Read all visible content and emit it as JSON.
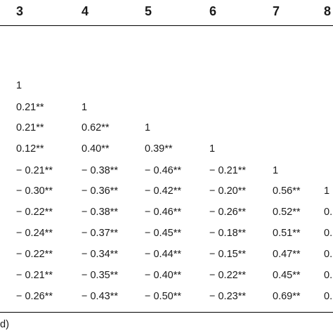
{
  "header": {
    "columns": [
      "3",
      "4",
      "5",
      "6",
      "7",
      "8"
    ]
  },
  "rows": [
    [
      "1",
      "",
      "",
      "",
      "",
      ""
    ],
    [
      "0.21**",
      "1",
      "",
      "",
      "",
      ""
    ],
    [
      "0.21**",
      "0.62**",
      "1",
      "",
      "",
      ""
    ],
    [
      "0.12**",
      "0.40**",
      "0.39**",
      "1",
      "",
      ""
    ],
    [
      "− 0.21**",
      "− 0.38**",
      "− 0.46**",
      "− 0.21**",
      "1",
      ""
    ],
    [
      "− 0.30**",
      "− 0.36**",
      "− 0.42**",
      "− 0.20**",
      "0.56**",
      "1"
    ],
    [
      "− 0.22**",
      "− 0.38**",
      "− 0.46**",
      "− 0.26**",
      "0.52**",
      "0."
    ],
    [
      "− 0.24**",
      "− 0.37**",
      "− 0.45**",
      "− 0.18**",
      "0.51**",
      "0."
    ],
    [
      "− 0.22**",
      "− 0.34**",
      "− 0.44**",
      "− 0.15**",
      "0.47**",
      "0."
    ],
    [
      "− 0.21**",
      "− 0.35**",
      "− 0.40**",
      "− 0.22**",
      "0.45**",
      "0."
    ],
    [
      "− 0.26**",
      "− 0.43**",
      "− 0.50**",
      "− 0.23**",
      "0.69**",
      "0."
    ]
  ],
  "footnote": "d)"
}
